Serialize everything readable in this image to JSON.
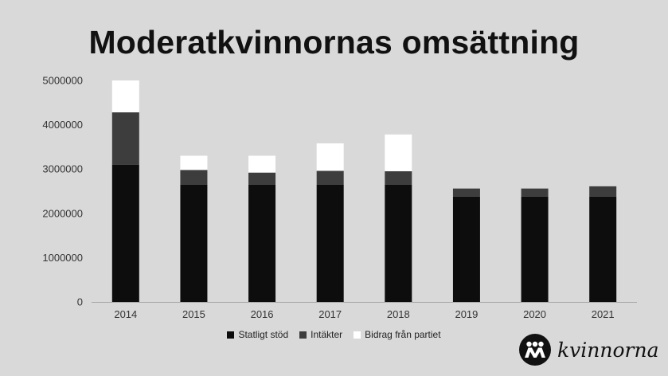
{
  "chart_data": {
    "type": "bar",
    "stacked": true,
    "title": "Moderatkvinnornas omsättning",
    "xlabel": "",
    "ylabel": "",
    "categories": [
      "2014",
      "2015",
      "2016",
      "2017",
      "2018",
      "2019",
      "2020",
      "2021"
    ],
    "ylim": [
      0,
      5000000
    ],
    "yticks": [
      "0",
      "1000000",
      "2000000",
      "3000000",
      "4000000",
      "5000000"
    ],
    "grid": false,
    "legend_position": "bottom",
    "series": [
      {
        "name": "Statligt stöd",
        "color": "#0d0d0d",
        "values": [
          3100000,
          2650000,
          2650000,
          2650000,
          2650000,
          2380000,
          2380000,
          2380000
        ]
      },
      {
        "name": "Intäkter",
        "color": "#3d3d3d",
        "values": [
          1180000,
          330000,
          270000,
          310000,
          300000,
          180000,
          180000,
          230000
        ]
      },
      {
        "name": "Bidrag från partiet",
        "color": "#ffffff",
        "values": [
          720000,
          320000,
          380000,
          620000,
          830000,
          0,
          0,
          0
        ]
      }
    ]
  },
  "logo": {
    "text": "kvinnorna"
  }
}
